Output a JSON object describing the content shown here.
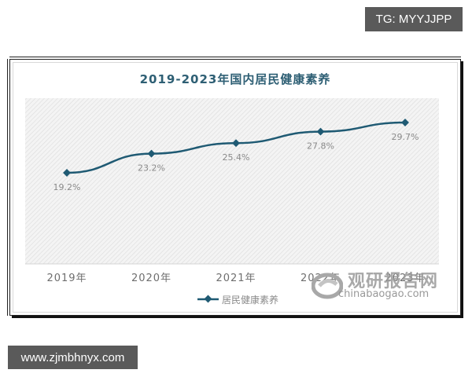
{
  "badges": {
    "top_right": "TG: MYYJJPP",
    "bottom_left": "www.zjmbhnyx.com"
  },
  "chart": {
    "title": "2019-2023年国内居民健康素养",
    "legend_label": "居民健康素养",
    "line_color": "#1f5a73",
    "title_color": "#2e5f74",
    "label_color": "#8a8a8a"
  },
  "watermark": {
    "cn": "观研报告网",
    "en": "chinabaogao.com"
  },
  "chart_data": {
    "type": "line",
    "title": "2019-2023年国内居民健康素养",
    "categories": [
      "2019年",
      "2020年",
      "2021年",
      "2022年",
      "2023年"
    ],
    "series": [
      {
        "name": "居民健康素养",
        "values": [
          19.2,
          23.2,
          25.4,
          27.8,
          29.7
        ],
        "labels": [
          "19.2%",
          "23.2%",
          "25.4%",
          "27.8%",
          "29.7%"
        ]
      }
    ],
    "xlabel": "",
    "ylabel": "",
    "unit": "%",
    "grid": false,
    "legend_position": "bottom",
    "y_axis_visible": false
  }
}
